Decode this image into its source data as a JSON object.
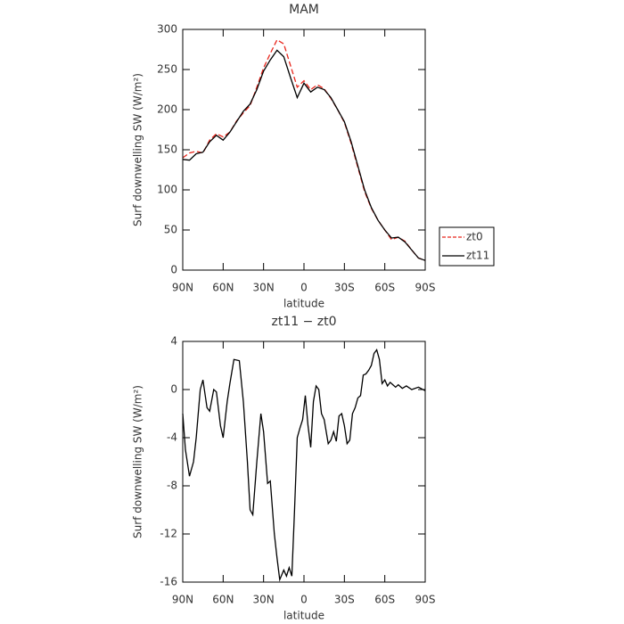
{
  "chart_data": [
    {
      "type": "line",
      "title": "MAM",
      "xlabel": "latitude",
      "ylabel": "Surf downwelling SW (W/m²)",
      "x": [
        90,
        85,
        80,
        75,
        70,
        65,
        60,
        55,
        50,
        45,
        40,
        35,
        30,
        25,
        20,
        15,
        10,
        5,
        0,
        -5,
        -10,
        -15,
        -20,
        -25,
        -30,
        -35,
        -40,
        -45,
        -50,
        -55,
        -60,
        -65,
        -70,
        -75,
        -80,
        -85,
        -90
      ],
      "series": [
        {
          "name": "zt0",
          "color": "#e8261c",
          "dashed": true,
          "values": [
            140,
            146,
            148,
            146,
            162,
            170,
            166,
            172,
            186,
            196,
            205,
            228,
            252,
            270,
            287,
            282,
            255,
            228,
            236,
            225,
            231,
            226,
            214,
            200,
            184,
            158,
            128,
            98,
            77,
            62,
            50,
            38,
            41,
            36,
            25,
            15,
            12
          ]
        },
        {
          "name": "zt11",
          "color": "#000000",
          "dashed": false,
          "values": [
            138,
            137,
            145,
            147,
            160,
            168,
            162,
            172,
            185,
            198,
            207,
            225,
            248,
            262,
            274,
            266,
            240,
            215,
            233,
            222,
            228,
            225,
            215,
            200,
            185,
            160,
            130,
            100,
            78,
            62,
            50,
            40,
            41,
            35,
            25,
            15,
            12
          ]
        }
      ],
      "xlim": [
        90,
        -90
      ],
      "xticks": [
        {
          "value": 90,
          "label": "90N"
        },
        {
          "value": 60,
          "label": "60N"
        },
        {
          "value": 30,
          "label": "30N"
        },
        0,
        {
          "value": -30,
          "label": "30S"
        },
        {
          "value": -60,
          "label": "60S"
        },
        {
          "value": -90,
          "label": "90S"
        }
      ],
      "ylim": [
        0,
        300
      ],
      "yticks": [
        0,
        50,
        100,
        150,
        200,
        250,
        300
      ],
      "legend": "right"
    },
    {
      "type": "line",
      "title": "zt11 − zt0",
      "xlabel": "latitude",
      "ylabel": "Surf downwelling SW (W/m²)",
      "color": "#000000",
      "x": [
        90,
        88,
        85,
        82,
        80,
        77,
        75,
        72,
        70,
        67,
        65,
        62,
        60,
        57,
        55,
        52,
        48,
        45,
        42,
        40,
        38,
        35,
        32,
        30,
        27,
        25,
        22,
        20,
        18,
        15,
        13,
        11,
        9,
        7,
        5,
        3,
        1,
        -1,
        -3,
        -5,
        -7,
        -9,
        -11,
        -13,
        -15,
        -18,
        -20,
        -22,
        -24,
        -26,
        -28,
        -30,
        -32,
        -34,
        -36,
        -38,
        -40,
        -42,
        -44,
        -46,
        -48,
        -50,
        -52,
        -54,
        -56,
        -58,
        -60,
        -62,
        -64,
        -66,
        -68,
        -70,
        -73,
        -76,
        -80,
        -85,
        -90
      ],
      "values": [
        -2,
        -5,
        -7.2,
        -6,
        -4,
        0,
        0.8,
        -1.5,
        -1.8,
        0,
        -0.2,
        -3,
        -4,
        -1,
        0.5,
        2.5,
        2.4,
        -1,
        -6,
        -10,
        -10.4,
        -6,
        -2,
        -3.5,
        -7.8,
        -7.6,
        -12,
        -14,
        -15.8,
        -15,
        -15.5,
        -14.8,
        -15.5,
        -10,
        -4,
        -3.2,
        -2.5,
        -0.5,
        -3,
        -4.8,
        -1,
        0.3,
        0,
        -2,
        -2.5,
        -4.5,
        -4.2,
        -3.5,
        -4.3,
        -2.2,
        -2,
        -3,
        -4.5,
        -4.2,
        -2,
        -1.5,
        -0.7,
        -0.5,
        1.2,
        1.3,
        1.6,
        2,
        3,
        3.3,
        2.5,
        0.5,
        0.8,
        0.3,
        0.6,
        0.4,
        0.2,
        0.4,
        0.1,
        0.3,
        0,
        0.2,
        -0.1
      ],
      "xlim": [
        90,
        -90
      ],
      "xticks": [
        {
          "value": 90,
          "label": "90N"
        },
        {
          "value": 60,
          "label": "60N"
        },
        {
          "value": 30,
          "label": "30N"
        },
        0,
        {
          "value": -30,
          "label": "30S"
        },
        {
          "value": -60,
          "label": "60S"
        },
        {
          "value": -90,
          "label": "90S"
        }
      ],
      "ylim": [
        -16,
        4
      ],
      "yticks": [
        -16,
        -12,
        -8,
        -4,
        0,
        4
      ]
    }
  ]
}
